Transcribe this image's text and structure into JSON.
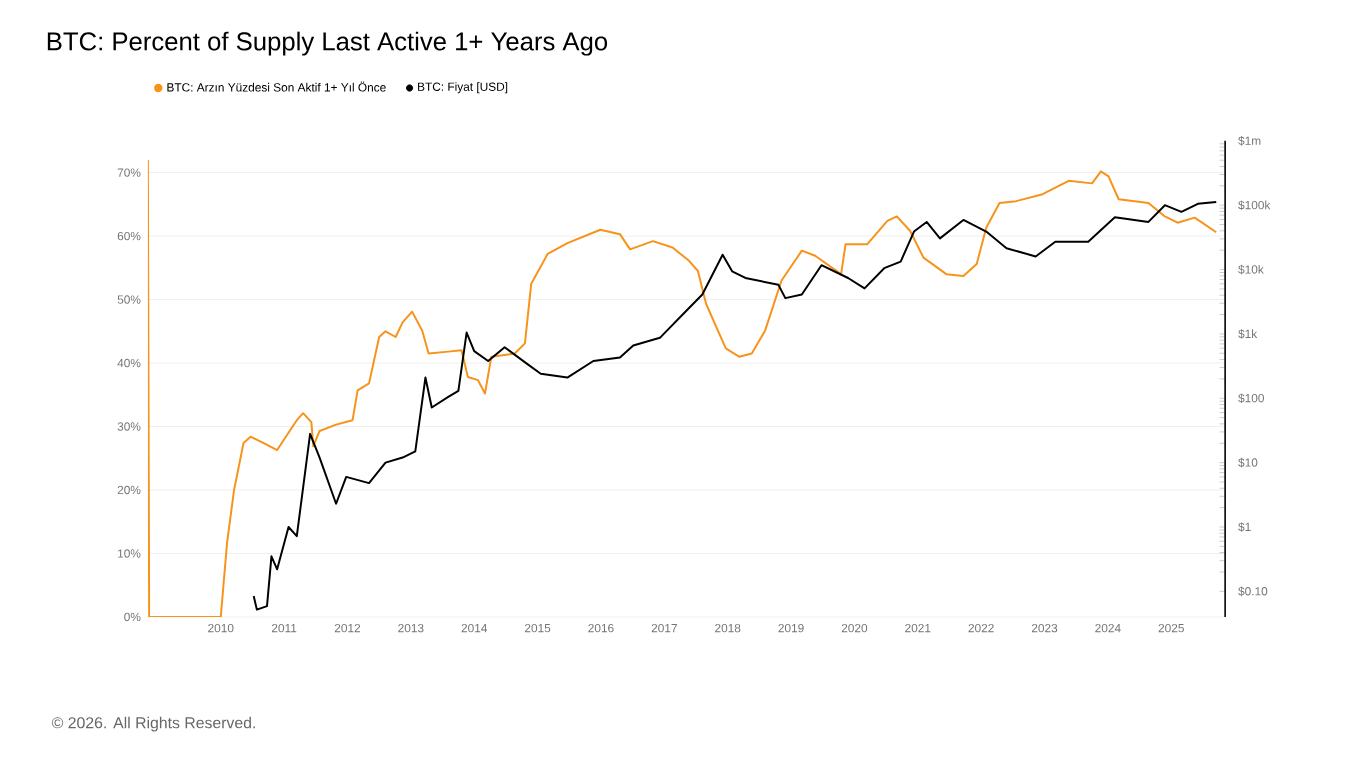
{
  "chart_data": {
    "type": "line",
    "title": "BTC: Percent of Supply Last Active 1+ Years Ago",
    "annotations": [
      "© 2026. All Rights Reserved."
    ],
    "xlim": [
      2008.85,
      2025.85
    ],
    "xticks": [
      2010,
      2011,
      2012,
      2013,
      2014,
      2015,
      2016,
      2017,
      2018,
      2019,
      2020,
      2021,
      2022,
      2023,
      2024,
      2025
    ],
    "ylim": [
      0,
      75
    ],
    "yticks": [
      {
        "value": 0,
        "label": "0%"
      },
      {
        "value": 10,
        "label": "10%"
      },
      {
        "value": 20,
        "label": "20%"
      },
      {
        "value": 30,
        "label": "30%"
      },
      {
        "value": 40,
        "label": "40%"
      },
      {
        "value": 50,
        "label": "50%"
      },
      {
        "value": 60,
        "label": "60%"
      },
      {
        "value": 70,
        "label": "70%"
      }
    ],
    "y2lim": [
      0.04,
      1000000
    ],
    "y2ticks": [
      {
        "value": 0.1,
        "label": "$0.10"
      },
      {
        "value": 1,
        "label": "$1"
      },
      {
        "value": 10,
        "label": "$10"
      },
      {
        "value": 100,
        "label": "$100"
      },
      {
        "value": 1000,
        "label": "$1k"
      },
      {
        "value": 10000,
        "label": "$10k"
      },
      {
        "value": 100000,
        "label": "$100k"
      },
      {
        "value": 1000000,
        "label": "$1m"
      }
    ],
    "log": "y2",
    "grid": "y",
    "legend": "top left",
    "series": [
      {
        "name": "BTC: Arzın Yüzdesi Son Aktif 1+ Yıl Önce",
        "color": "#f7931a",
        "x": [
          2008.85,
          2008.87,
          2010.0,
          2010.1,
          2010.21,
          2010.36,
          2010.47,
          2010.68,
          2010.89,
          2011.2,
          2011.3,
          2011.43,
          2011.46,
          2011.56,
          2011.82,
          2012.08,
          2012.16,
          2012.34,
          2012.5,
          2012.6,
          2012.76,
          2012.87,
          2013.02,
          2013.18,
          2013.28,
          2013.59,
          2013.8,
          2013.9,
          2014.06,
          2014.17,
          2014.27,
          2014.64,
          2014.8,
          2014.9,
          2015.16,
          2015.47,
          2015.99,
          2016.3,
          2016.46,
          2016.82,
          2017.13,
          2017.39,
          2017.53,
          2017.66,
          2017.97,
          2018.18,
          2018.38,
          2018.59,
          2018.85,
          2019.17,
          2019.38,
          2019.79,
          2019.86,
          2020.2,
          2020.52,
          2020.67,
          2020.88,
          2021.09,
          2021.45,
          2021.72,
          2021.93,
          2022.08,
          2022.29,
          2022.55,
          2022.97,
          2023.38,
          2023.75,
          2023.89,
          2024.01,
          2024.17,
          2024.64,
          2024.9,
          2025.1,
          2025.37,
          2025.71
        ],
        "values": [
          72,
          0,
          0,
          11.7,
          20,
          27.4,
          28.4,
          27.4,
          26.3,
          31.0,
          32.1,
          30.7,
          26.9,
          29.3,
          30.3,
          31.0,
          35.7,
          36.8,
          44.1,
          45.0,
          44.1,
          46.4,
          48.1,
          45.1,
          41.5,
          41.8,
          42.0,
          37.8,
          37.3,
          35.2,
          41.0,
          41.5,
          43.1,
          52.5,
          57.2,
          58.9,
          61.0,
          60.3,
          57.9,
          59.2,
          58.2,
          56.1,
          54.5,
          49.3,
          42.3,
          41.0,
          41.5,
          45.1,
          53.0,
          57.7,
          56.9,
          54.0,
          58.7,
          58.7,
          62.4,
          63.1,
          60.8,
          56.6,
          54.0,
          53.7,
          55.6,
          61.3,
          65.2,
          65.5,
          66.6,
          68.7,
          68.3,
          70.2,
          69.4,
          65.8,
          65.2,
          63.1,
          62.1,
          62.9,
          60.6
        ]
      },
      {
        "name": "BTC: Fiyat [USD]",
        "color": "#000000",
        "axis": "y2",
        "x": [
          2010.52,
          2010.57,
          2010.73,
          2010.8,
          2010.89,
          2011.07,
          2011.2,
          2011.41,
          2011.56,
          2011.82,
          2011.98,
          2012.34,
          2012.6,
          2012.87,
          2013.07,
          2013.23,
          2013.33,
          2013.59,
          2013.75,
          2013.88,
          2014.0,
          2014.22,
          2014.48,
          2014.84,
          2015.05,
          2015.47,
          2015.88,
          2016.3,
          2016.51,
          2016.93,
          2017.34,
          2017.6,
          2017.92,
          2018.07,
          2018.28,
          2018.8,
          2018.91,
          2019.17,
          2019.48,
          2019.9,
          2020.16,
          2020.47,
          2020.73,
          2020.94,
          2021.14,
          2021.35,
          2021.72,
          2022.08,
          2022.4,
          2022.86,
          2023.17,
          2023.69,
          2024.11,
          2024.64,
          2024.9,
          2025.16,
          2025.42,
          2025.71
        ],
        "values": [
          0.085,
          0.052,
          0.059,
          0.35,
          0.22,
          1.0,
          0.72,
          28,
          12,
          2.3,
          6,
          4.8,
          10,
          12,
          15,
          210,
          72,
          105,
          130,
          1050,
          540,
          380,
          620,
          340,
          240,
          210,
          380,
          430,
          660,
          870,
          2250,
          4100,
          17000,
          9400,
          7400,
          5800,
          3600,
          4100,
          11700,
          7400,
          5100,
          10500,
          13300,
          39000,
          55000,
          30500,
          59000,
          39000,
          21500,
          16000,
          27000,
          27000,
          65000,
          55000,
          100000,
          79000,
          105000,
          112000
        ]
      }
    ]
  }
}
